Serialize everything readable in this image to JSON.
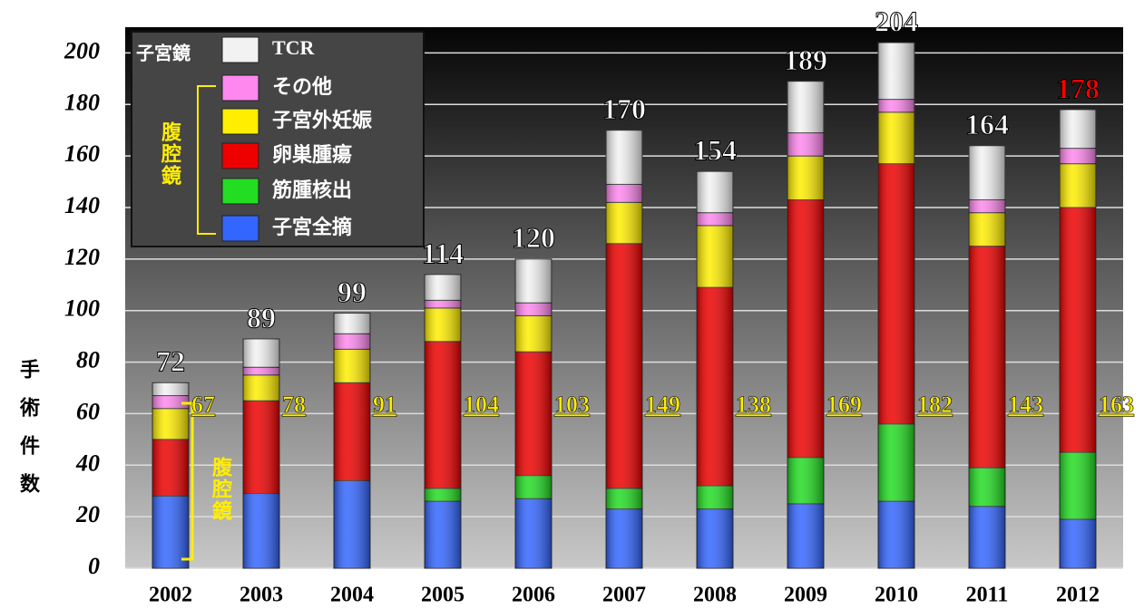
{
  "chart_data": {
    "type": "stacked_bar",
    "y_label": "手術件数",
    "categories": [
      "2002",
      "2003",
      "2004",
      "2005",
      "2006",
      "2007",
      "2008",
      "2009",
      "2010",
      "2011",
      "2012"
    ],
    "series": [
      {
        "name": "子宮全摘",
        "color": "#3366ff",
        "values": [
          28,
          29,
          34,
          26,
          27,
          23,
          23,
          25,
          26,
          24,
          19
        ]
      },
      {
        "name": "筋腫核出",
        "color": "#22dd22",
        "values": [
          0,
          0,
          0,
          5,
          9,
          8,
          9,
          18,
          30,
          15,
          26
        ]
      },
      {
        "name": "卵巣腫瘍",
        "color": "#ee0000",
        "values": [
          22,
          36,
          38,
          57,
          48,
          95,
          77,
          100,
          101,
          86,
          95
        ]
      },
      {
        "name": "子宮外妊娠",
        "color": "#ffee00",
        "values": [
          12,
          10,
          13,
          13,
          14,
          16,
          24,
          17,
          20,
          13,
          17
        ]
      },
      {
        "name": "その他",
        "color": "#ff88ee",
        "values": [
          5,
          3,
          6,
          3,
          5,
          7,
          5,
          9,
          5,
          5,
          6
        ]
      },
      {
        "name": "TCR",
        "color": "#f2f2f2",
        "values": [
          5,
          11,
          8,
          10,
          17,
          21,
          16,
          20,
          22,
          21,
          15
        ]
      }
    ],
    "totals": [
      72,
      89,
      99,
      114,
      120,
      170,
      154,
      189,
      204,
      164,
      178
    ],
    "total_label_colors": [
      "#ffffff",
      "#ffffff",
      "#ffffff",
      "#ffffff",
      "#ffffff",
      "#ffffff",
      "#ffffff",
      "#ffffff",
      "#ffffff",
      "#ffffff",
      "#ff0000"
    ],
    "laparoscopy_totals": [
      67,
      78,
      91,
      104,
      103,
      149,
      138,
      169,
      182,
      143,
      163
    ],
    "legend_groups": [
      "子宮鏡",
      "腹腔鏡"
    ],
    "annotation": "腹腔鏡",
    "ylim": [
      0,
      210
    ],
    "yticks": [
      0,
      20,
      40,
      60,
      80,
      100,
      120,
      140,
      160,
      180,
      200
    ],
    "grid": true
  }
}
